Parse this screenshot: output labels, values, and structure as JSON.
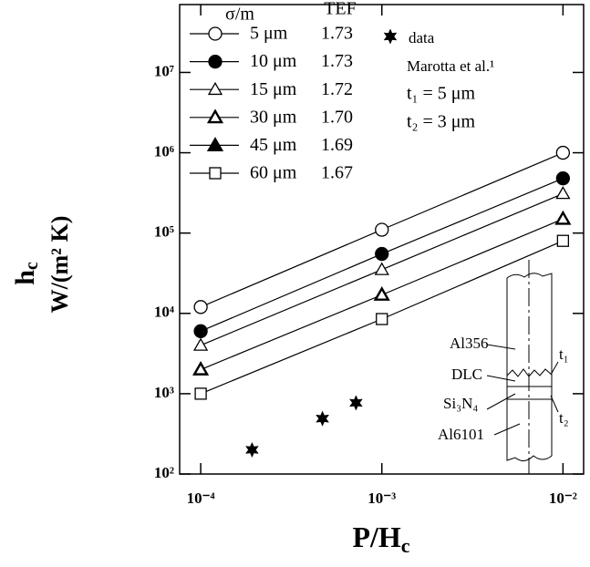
{
  "chart_data": {
    "type": "line",
    "x_label": {
      "main": "P/H",
      "sub": "c"
    },
    "y_label": {
      "main": "h",
      "sub": "c",
      "unit": "W/(m² K)"
    },
    "log_x": true,
    "log_y": true,
    "xlim": [
      7.65e-05,
      0.013
    ],
    "ylim": [
      100,
      70000000
    ],
    "xticks": [
      {
        "value": 0.0001,
        "label": "10⁻⁴"
      },
      {
        "value": 0.001,
        "label": "10⁻³"
      },
      {
        "value": 0.01,
        "label": "10⁻²"
      }
    ],
    "yticks": [
      {
        "value": 100,
        "label": "10²"
      },
      {
        "value": 1000,
        "label": "10³"
      },
      {
        "value": 10000,
        "label": "10⁴"
      },
      {
        "value": 100000,
        "label": "10⁵"
      },
      {
        "value": 1000000,
        "label": "10⁶"
      },
      {
        "value": 10000000,
        "label": "10⁷"
      }
    ],
    "x": [
      0.0001,
      0.001,
      0.01
    ],
    "legend_headers": [
      "σ/m",
      "TEF"
    ],
    "series": [
      {
        "name": "5 μm",
        "tef": "1.73",
        "marker": "open-circle",
        "color": "#000000",
        "values": [
          12000,
          110000,
          1000000
        ]
      },
      {
        "name": "10 μm",
        "tef": "1.73",
        "marker": "filled-circle",
        "color": "#000000",
        "values": [
          6000,
          55000,
          480000
        ]
      },
      {
        "name": "15 μm",
        "tef": "1.72",
        "marker": "open-triangle",
        "color": "#000000",
        "values": [
          4000,
          35000,
          310000
        ]
      },
      {
        "name": "30 μm",
        "tef": "1.70",
        "marker": "bold-triangle",
        "color": "#000000",
        "values": [
          2000,
          17000,
          150000
        ]
      },
      {
        "name": "45 μm",
        "tef": "1.69",
        "marker": "filled-triangle",
        "color": "#000000",
        "values": [
          null,
          null,
          null
        ]
      },
      {
        "name": "60 μm",
        "tef": "1.67",
        "marker": "open-square",
        "color": "#000000",
        "values": [
          1000,
          8500,
          80000
        ]
      }
    ],
    "data_points": {
      "name": "data",
      "source": "Marotta et al.¹",
      "marker": "star",
      "color": "#000000",
      "x": [
        0.000192,
        0.00047,
        0.00072
      ],
      "values": [
        200,
        490,
        770
      ]
    },
    "annotations": [
      "t₁ = 5 μm",
      "t₂ = 3 μm"
    ],
    "diagram_labels": [
      "Al356",
      "DLC",
      "Si₃N₄",
      "Al6101",
      "t₁",
      "t₂"
    ]
  }
}
